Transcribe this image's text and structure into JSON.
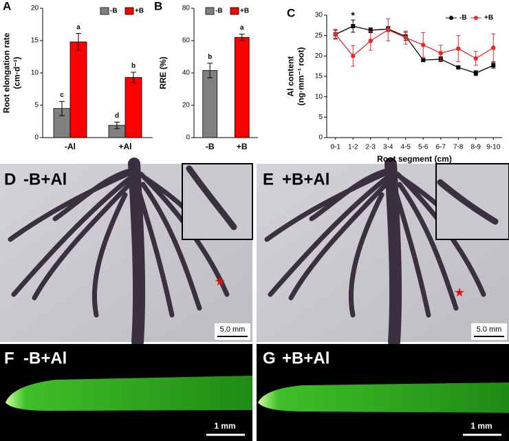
{
  "chart_data": [
    {
      "type": "bar",
      "panel": "A",
      "ylabel": [
        "Root elongation rate",
        "(cm·d⁻¹)"
      ],
      "categories": [
        "-Al",
        "+Al"
      ],
      "ylim": [
        0,
        20
      ],
      "yticks": [
        0,
        5,
        10,
        15,
        20
      ],
      "series": [
        {
          "name": "-B",
          "color": "#808080",
          "values": [
            4.5,
            1.9
          ],
          "errors": [
            1.1,
            0.5
          ],
          "letters": [
            "c",
            "d"
          ]
        },
        {
          "name": "+B",
          "color": "#ff0000",
          "values": [
            14.8,
            9.3
          ],
          "errors": [
            1.3,
            0.8
          ],
          "letters": [
            "a",
            "b"
          ]
        }
      ]
    },
    {
      "type": "bar",
      "panel": "B",
      "ylabel": [
        "RRE (%)"
      ],
      "categories": [
        "-B",
        "+B"
      ],
      "ylim": [
        0,
        80
      ],
      "yticks": [
        0,
        20,
        40,
        60,
        80
      ],
      "values": [
        41.5,
        62
      ],
      "errors": [
        4.5,
        2
      ],
      "letters": [
        "b",
        "a"
      ],
      "colors": [
        "#808080",
        "#ff0000"
      ],
      "legend": [
        "-B",
        "+B"
      ]
    },
    {
      "type": "line",
      "panel": "C",
      "ylabel": [
        "Al content",
        "(ng·mm⁻¹ root)"
      ],
      "xlabel": "Root segment (cm)",
      "categories": [
        "0-1",
        "1-2",
        "2-3",
        "3-4",
        "4-5",
        "5-6",
        "6-7",
        "7-8",
        "8-9",
        "9-10"
      ],
      "ylim": [
        0,
        30
      ],
      "yticks": [
        0,
        5,
        10,
        15,
        20,
        25,
        30
      ],
      "annotations": [
        {
          "text": "*",
          "category": "1-2"
        }
      ],
      "series": [
        {
          "name": "-B",
          "color": "#000000",
          "marker": "square",
          "values": [
            25.3,
            27.3,
            26.3,
            26.6,
            24.8,
            19,
            19.2,
            17.2,
            15.8,
            17.7
          ],
          "errors": [
            1,
            1.5,
            0.6,
            0.6,
            1,
            0.3,
            0.6,
            0.3,
            0.6,
            0.7
          ]
        },
        {
          "name": "+B",
          "color": "#e8262b",
          "marker": "circle",
          "values": [
            25.3,
            20,
            23.7,
            26.4,
            24.5,
            22.7,
            20.7,
            21.8,
            19.4,
            22
          ],
          "errors": [
            1.2,
            2.5,
            2.3,
            2.7,
            1.6,
            3,
            1.9,
            3.2,
            1.7,
            3.4
          ]
        }
      ]
    }
  ],
  "photos": [
    {
      "label": "D",
      "title": "-B+Al",
      "scale": "5.0 mm"
    },
    {
      "label": "E",
      "title": "+B+Al",
      "scale": "5.0 mm"
    },
    {
      "label": "F",
      "title": "-B+Al",
      "scale": "1 mm"
    },
    {
      "label": "G",
      "title": "+B+Al",
      "scale": "1 mm"
    }
  ]
}
